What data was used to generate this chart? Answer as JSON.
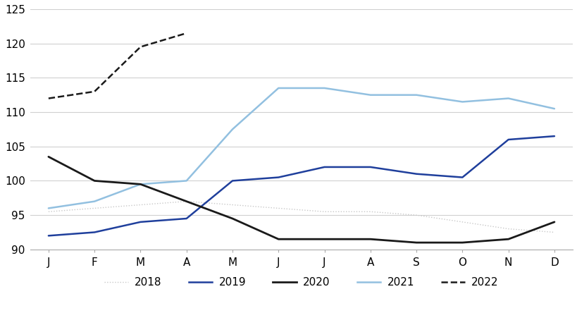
{
  "months": [
    "J",
    "F",
    "M",
    "A",
    "M",
    "J",
    "J",
    "A",
    "S",
    "O",
    "N",
    "D"
  ],
  "series": {
    "2018": [
      95.5,
      96.0,
      96.5,
      97.0,
      96.5,
      96.0,
      95.5,
      95.5,
      95.0,
      94.0,
      93.0,
      92.5
    ],
    "2019": [
      92.0,
      92.5,
      94.0,
      94.5,
      100.0,
      100.5,
      102.0,
      102.0,
      101.0,
      100.5,
      106.0,
      106.5
    ],
    "2020": [
      103.5,
      100.0,
      99.5,
      97.0,
      94.5,
      91.5,
      91.5,
      91.5,
      91.0,
      91.0,
      91.5,
      94.0
    ],
    "2021": [
      96.0,
      97.0,
      99.5,
      100.0,
      107.5,
      113.5,
      113.5,
      112.5,
      112.5,
      111.5,
      112.0,
      110.5
    ],
    "2022": [
      112.0,
      113.0,
      119.5,
      121.5,
      null,
      null,
      null,
      null,
      null,
      null,
      null,
      null
    ]
  },
  "colors": {
    "2018": "#c8c8c8",
    "2019": "#1f3f9c",
    "2020": "#1a1a1a",
    "2021": "#92c0e0",
    "2022": "#1a1a1a"
  },
  "linestyles": {
    "2018": "dotted",
    "2019": "solid",
    "2020": "solid",
    "2021": "solid",
    "2022": "dashed"
  },
  "linewidths": {
    "2018": 1.0,
    "2019": 1.8,
    "2020": 2.0,
    "2021": 1.8,
    "2022": 1.8
  },
  "ylim": [
    90,
    125
  ],
  "yticks": [
    90,
    95,
    100,
    105,
    110,
    115,
    120,
    125
  ],
  "legend_order": [
    "2018",
    "2019",
    "2020",
    "2021",
    "2022"
  ],
  "background_color": "#ffffff",
  "grid_color": "#d0d0d0"
}
